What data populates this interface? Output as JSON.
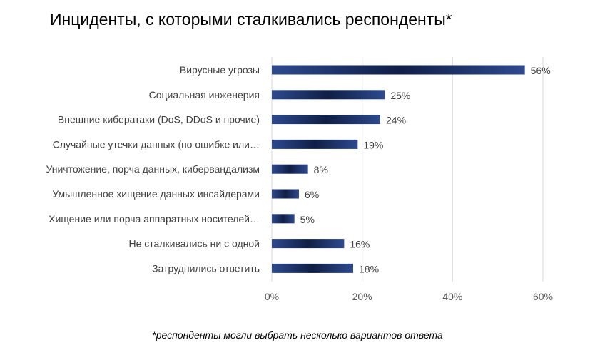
{
  "chart_data": {
    "type": "bar",
    "orientation": "horizontal",
    "title": "Инциденты, с которыми сталкивались респонденты*",
    "categories": [
      "Вирусные угрозы",
      "Социальная инженерия",
      "Внешние кибератаки (DoS, DDoS и прочие)",
      "Случайные утечки данных (по ошибке или…",
      "Уничтожение, порча данных, кибервандализм",
      "Умышленное хищение данных инсайдерами",
      "Хищение или порча аппаратных носителей…",
      "Не сталкивались ни с одной",
      "Затруднились ответить"
    ],
    "values": [
      56,
      25,
      24,
      19,
      8,
      6,
      5,
      16,
      18
    ],
    "value_labels": [
      "56%",
      "25%",
      "24%",
      "19%",
      "8%",
      "6%",
      "5%",
      "16%",
      "18%"
    ],
    "xlim": [
      0,
      60
    ],
    "xticks": [
      0,
      20,
      40,
      60
    ],
    "xtick_labels": [
      "0%",
      "20%",
      "40%",
      "60%"
    ],
    "gridlines": true,
    "legend": "none",
    "bar_color": "#2E4A8E",
    "bar_color_dark": "#0F1E45"
  },
  "footnote": "*респонденты могли выбрать несколько вариантов ответа"
}
